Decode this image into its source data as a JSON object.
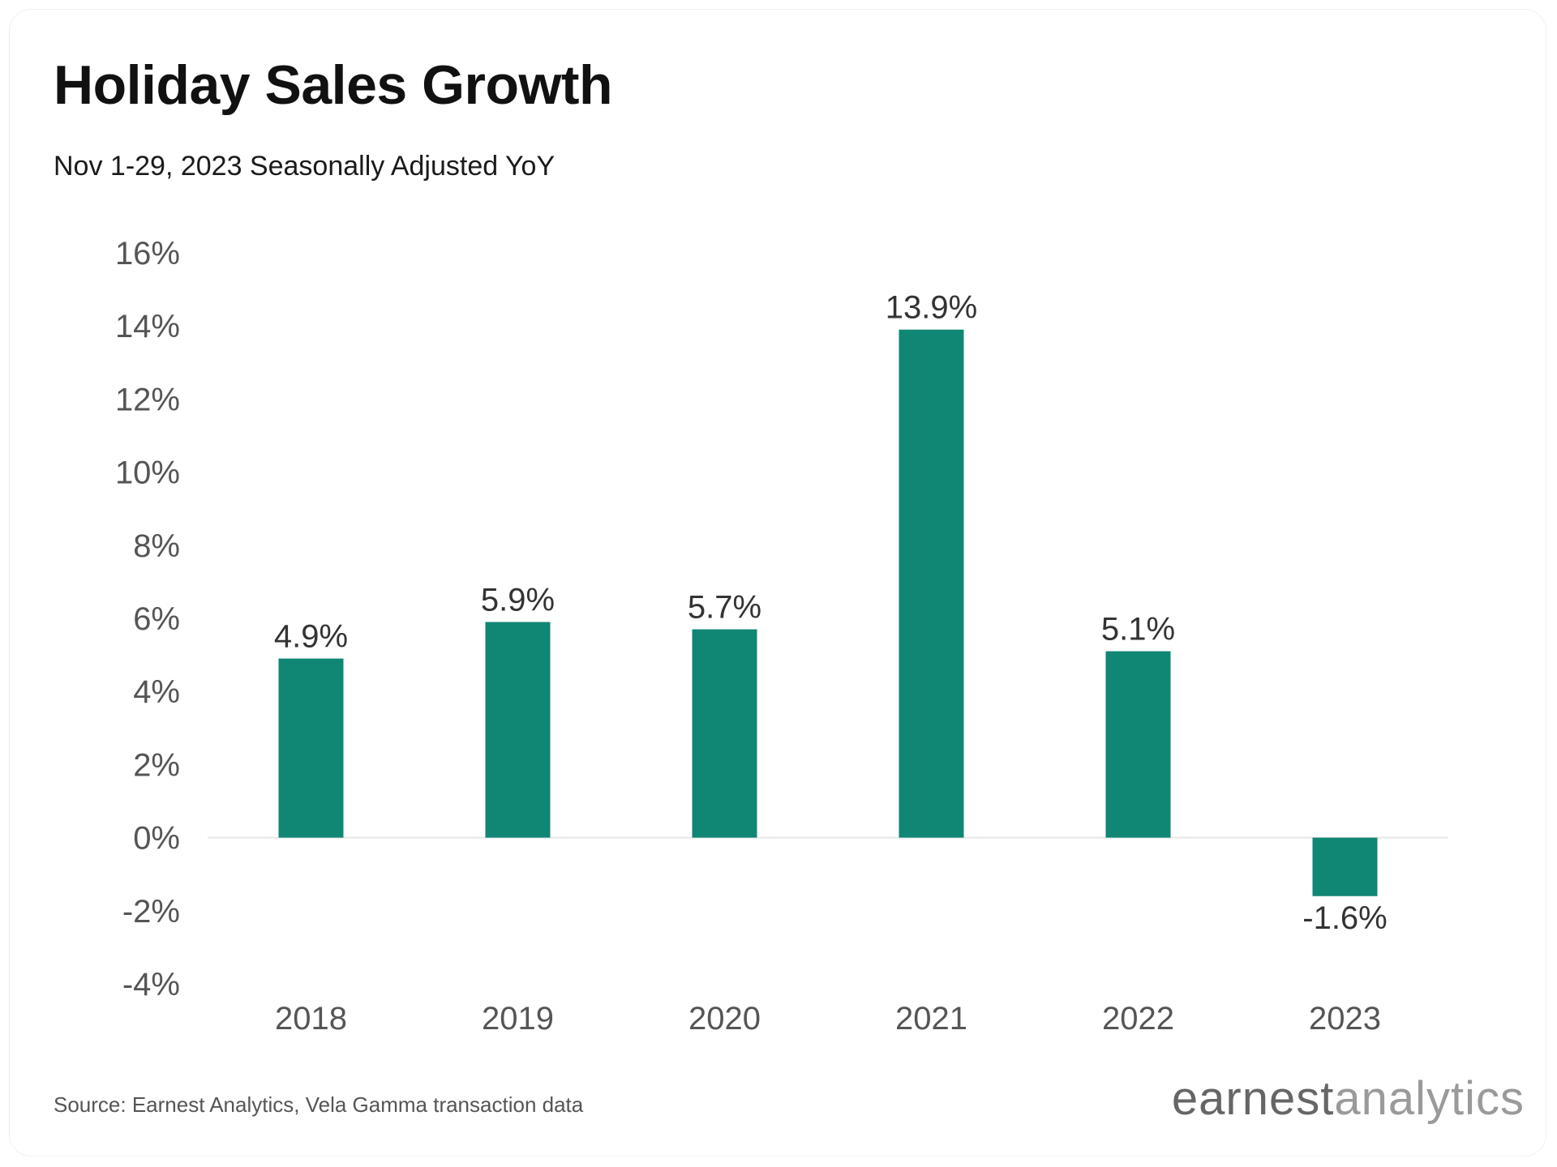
{
  "header": {
    "title": "Holiday Sales Growth",
    "subtitle": "Nov 1-29, 2023 Seasonally Adjusted YoY"
  },
  "footer": {
    "source": "Source: Earnest Analytics, Vela Gamma transaction data",
    "logo_part1": "earnest",
    "logo_part2": "analytics"
  },
  "colors": {
    "bar": "#108674",
    "axis_text": "#555555",
    "label_text": "#333333",
    "zero_line": "#e6e6e6"
  },
  "chart_data": {
    "type": "bar",
    "title": "Holiday Sales Growth",
    "subtitle": "Nov 1-29, 2023 Seasonally Adjusted YoY",
    "categories": [
      "2018",
      "2019",
      "2020",
      "2021",
      "2022",
      "2023"
    ],
    "values": [
      4.9,
      5.9,
      5.7,
      13.9,
      5.1,
      -1.6
    ],
    "data_labels": [
      "4.9%",
      "5.9%",
      "5.7%",
      "13.9%",
      "5.1%",
      "-1.6%"
    ],
    "xlabel": "",
    "ylabel": "",
    "ylim": [
      -4,
      16
    ],
    "yticks": [
      16,
      14,
      12,
      10,
      8,
      6,
      4,
      2,
      0,
      -2,
      -4
    ],
    "ytick_labels": [
      "16%",
      "14%",
      "12%",
      "10%",
      "8%",
      "6%",
      "4%",
      "2%",
      "0%",
      "-2%",
      "-4%"
    ],
    "grid": false,
    "legend": "none"
  }
}
